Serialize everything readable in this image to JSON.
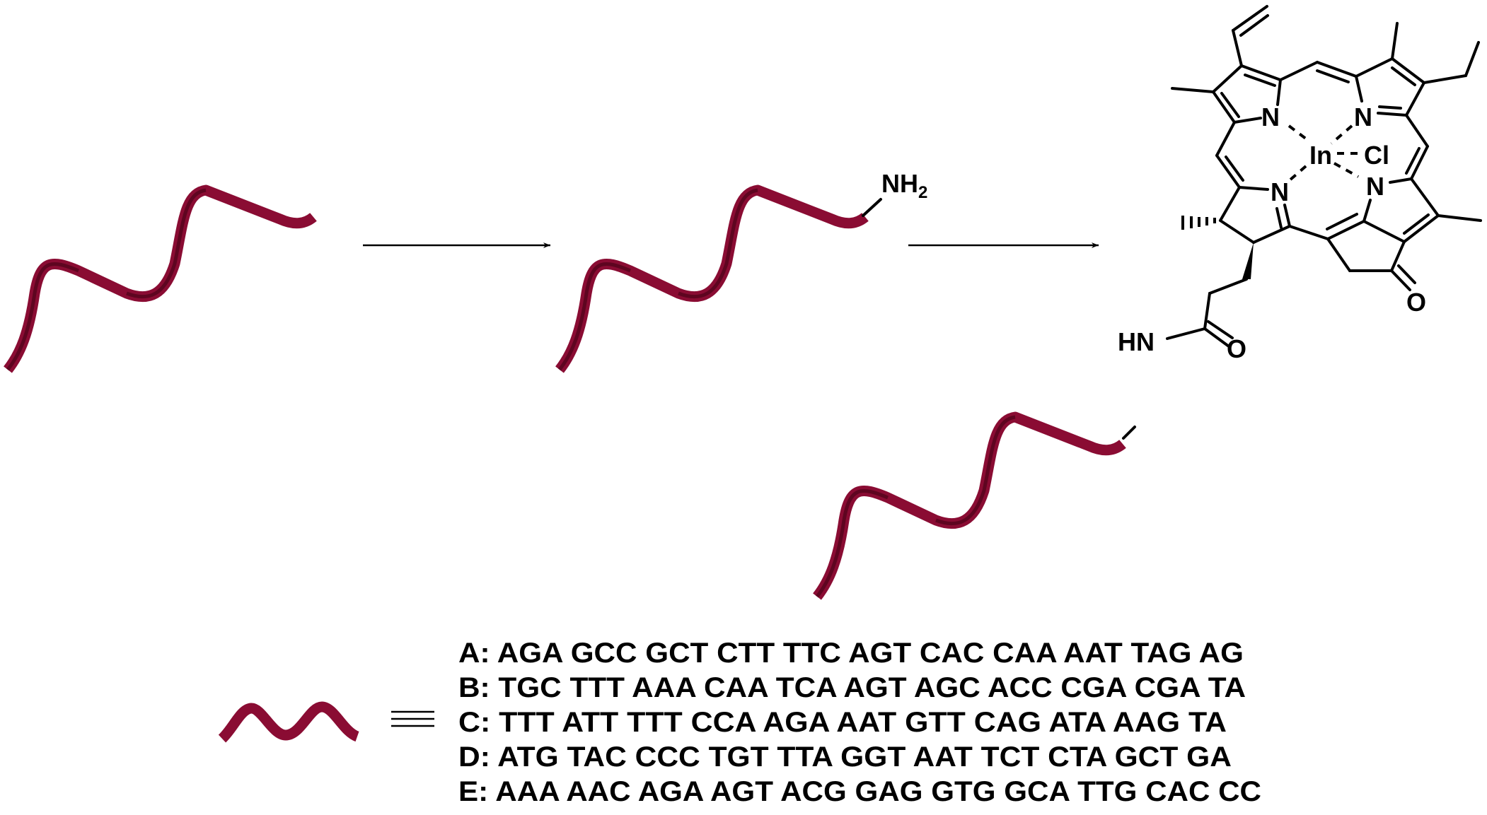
{
  "colors": {
    "ribbon": "#8a0c33",
    "ribbon_dark": "#5e0520",
    "bonds": "#000000"
  },
  "intermediate": {
    "amine_label": "NH2",
    "amine_main": "NH",
    "amine_sub": "2"
  },
  "product": {
    "metal": "In",
    "ligand": "Cl",
    "nitrogen": "N",
    "amide_nh": "HN",
    "oxygen": "O"
  },
  "legend": {
    "equivalence_symbol": "≡",
    "sequences": [
      {
        "label": "A:",
        "sequence": "AGA GCC GCT CTT TTC AGT CAC CAA AAT TAG AG"
      },
      {
        "label": "B:",
        "sequence": "TGC TTT AAA CAA TCA AGT AGC ACC CGA CGA TA"
      },
      {
        "label": "C:",
        "sequence": "TTT ATT TTT CCA AGA AAT GTT CAG ATA AAG TA"
      },
      {
        "label": "D:",
        "sequence": "ATG TAC CCC TGT TTA GGT AAT TCT CTA GCT GA"
      },
      {
        "label": "E:",
        "sequence": "AAA AAC AGA AGT ACG GAG GTG GCA TTG CAC CC"
      }
    ]
  }
}
